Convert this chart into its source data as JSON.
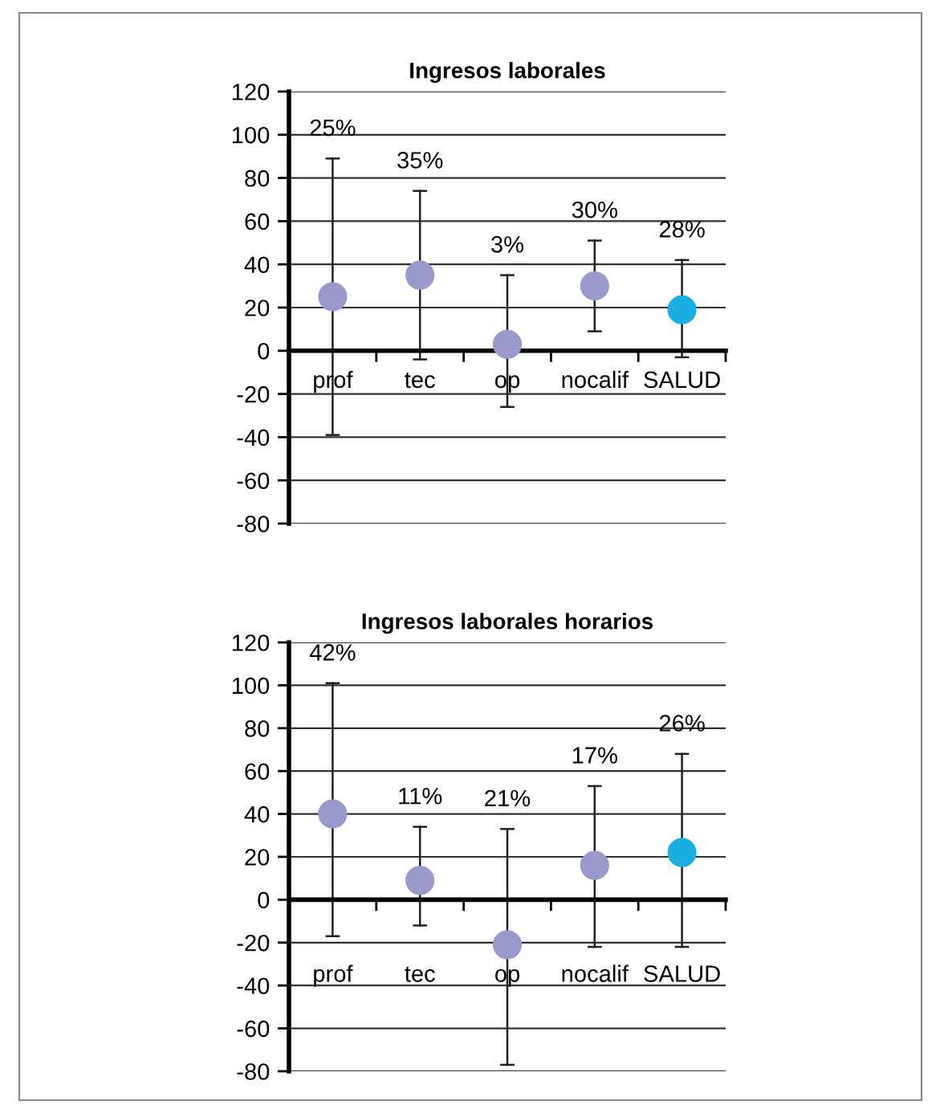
{
  "chart_data": [
    {
      "type": "scatter",
      "title": "Ingresos laborales",
      "categories": [
        "prof",
        "tec",
        "op",
        "nocalif",
        "SALUD"
      ],
      "values": [
        25,
        35,
        3,
        30,
        19
      ],
      "colors": [
        "#9999cc",
        "#9999cc",
        "#9999cc",
        "#9999cc",
        "#1aafe0"
      ],
      "errors": [
        [
          -39,
          89
        ],
        [
          -4,
          74
        ],
        [
          -26,
          35
        ],
        [
          9,
          51
        ],
        [
          -3,
          42
        ]
      ],
      "annotations": [
        "25%",
        "35%",
        "3%",
        "30%",
        "28%"
      ],
      "ylim": [
        -80,
        120
      ],
      "yticks": [
        -80,
        -60,
        -40,
        -20,
        0,
        20,
        40,
        60,
        80,
        100,
        120
      ],
      "grid": "y",
      "marker": "circle"
    },
    {
      "type": "scatter",
      "title": "Ingresos laborales horarios",
      "categories": [
        "prof",
        "tec",
        "op",
        "nocalif",
        "SALUD"
      ],
      "values": [
        40,
        9,
        -21,
        16,
        22
      ],
      "colors": [
        "#9999cc",
        "#9999cc",
        "#9999cc",
        "#9999cc",
        "#1aafe0"
      ],
      "errors": [
        [
          -17,
          101
        ],
        [
          -12,
          34
        ],
        [
          -77,
          33
        ],
        [
          -22,
          53
        ],
        [
          -22,
          68
        ]
      ],
      "annotations": [
        "42%",
        "11%",
        "21%",
        "17%",
        "26%"
      ],
      "ylim": [
        -80,
        120
      ],
      "yticks": [
        -80,
        -60,
        -40,
        -20,
        0,
        20,
        40,
        60,
        80,
        100,
        120
      ],
      "grid": "y",
      "marker": "circle"
    }
  ]
}
